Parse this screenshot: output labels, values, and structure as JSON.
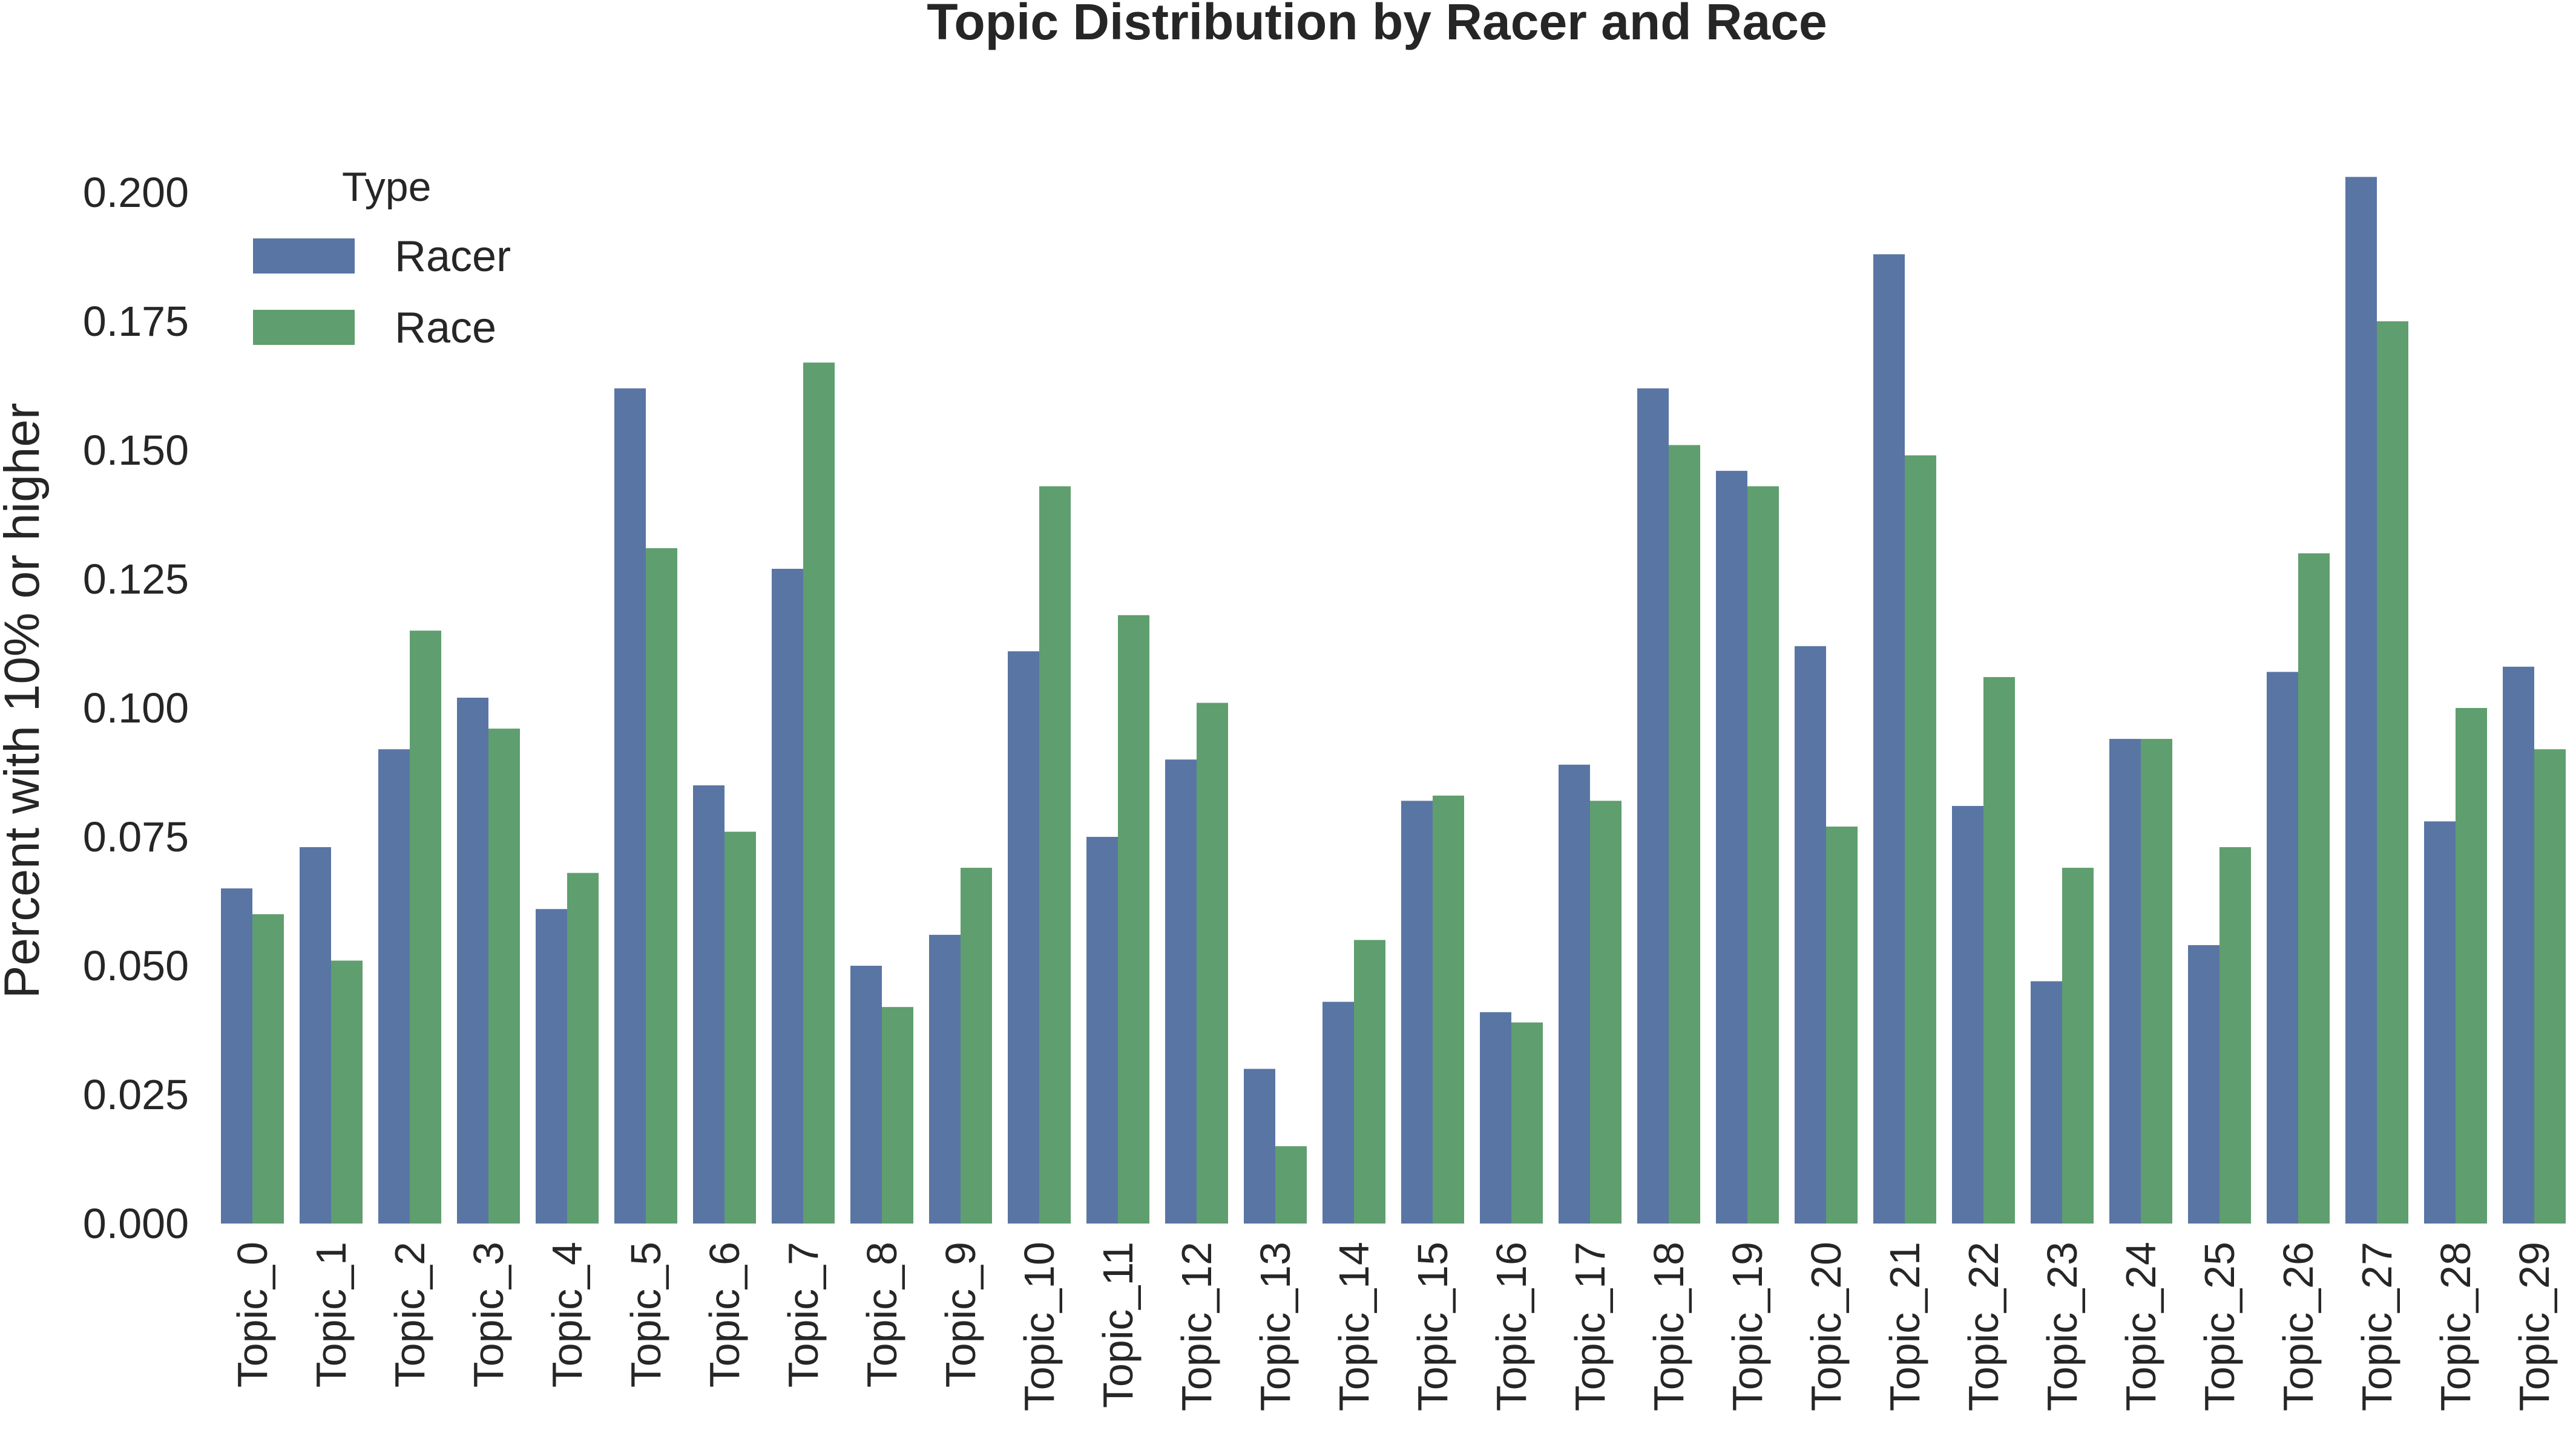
{
  "chart_data": {
    "type": "bar",
    "title": "Topic Distribution by Racer and Race",
    "xlabel": "",
    "ylabel": "Percent with 10% or higher",
    "ylim": [
      0,
      0.2
    ],
    "yticks": [
      "0.000",
      "0.025",
      "0.050",
      "0.075",
      "0.100",
      "0.125",
      "0.150",
      "0.175",
      "0.200"
    ],
    "grid": false,
    "legend": {
      "title": "Type",
      "placement": "top-left"
    },
    "categories": [
      "Topic_0",
      "Topic_1",
      "Topic_2",
      "Topic_3",
      "Topic_4",
      "Topic_5",
      "Topic_6",
      "Topic_7",
      "Topic_8",
      "Topic_9",
      "Topic_10",
      "Topic_11",
      "Topic_12",
      "Topic_13",
      "Topic_14",
      "Topic_15",
      "Topic_16",
      "Topic_17",
      "Topic_18",
      "Topic_19",
      "Topic_20",
      "Topic_21",
      "Topic_22",
      "Topic_23",
      "Topic_24",
      "Topic_25",
      "Topic_26",
      "Topic_27",
      "Topic_28",
      "Topic_29"
    ],
    "series": [
      {
        "name": "Racer",
        "color": "#5975a4",
        "values": [
          0.065,
          0.073,
          0.092,
          0.102,
          0.061,
          0.162,
          0.085,
          0.127,
          0.05,
          0.056,
          0.111,
          0.075,
          0.09,
          0.03,
          0.043,
          0.082,
          0.041,
          0.089,
          0.162,
          0.146,
          0.112,
          0.188,
          0.081,
          0.047,
          0.094,
          0.054,
          0.107,
          0.203,
          0.078,
          0.108
        ]
      },
      {
        "name": "Race",
        "color": "#5f9e6e",
        "values": [
          0.06,
          0.051,
          0.115,
          0.096,
          0.068,
          0.131,
          0.076,
          0.167,
          0.042,
          0.069,
          0.143,
          0.118,
          0.101,
          0.015,
          0.055,
          0.083,
          0.039,
          0.082,
          0.151,
          0.143,
          0.077,
          0.149,
          0.106,
          0.069,
          0.094,
          0.073,
          0.13,
          0.175,
          0.1,
          0.092
        ]
      }
    ]
  }
}
